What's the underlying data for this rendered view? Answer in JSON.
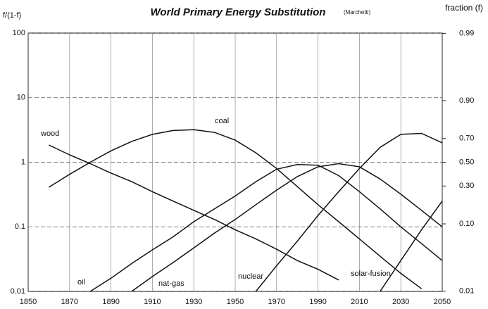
{
  "chart_data": {
    "type": "line",
    "title": "World Primary Energy Substitution",
    "subtitle": "(Marchetti)",
    "y_label": "f/(1-f)",
    "y2_label": "fraction (f)",
    "log_y": true,
    "grid": true,
    "color": "#111111",
    "xlim": [
      1850,
      2050
    ],
    "xticks": [
      1850,
      1870,
      1890,
      1910,
      1930,
      1950,
      1970,
      1990,
      2010,
      2030,
      2050
    ],
    "ylim": [
      0.01,
      100
    ],
    "yticks": [
      0.01,
      0.1,
      1,
      10,
      100
    ],
    "y2ticks": [
      0.99,
      {
        "value": 0.9,
        "label": "0.90"
      },
      {
        "value": 0.7,
        "label": "0.70"
      },
      {
        "value": 0.5,
        "label": "0.50"
      },
      {
        "value": 0.3,
        "label": "0.30"
      },
      {
        "value": 0.1,
        "label": "0.10"
      },
      0.01
    ],
    "x": [
      1850,
      1860,
      1870,
      1880,
      1890,
      1900,
      1910,
      1920,
      1930,
      1940,
      1950,
      1960,
      1970,
      1980,
      1990,
      2000,
      2010,
      2020,
      2030,
      2040,
      2050
    ],
    "series": [
      {
        "name": "wood",
        "color": "#111111",
        "values": [
          null,
          1.85,
          1.3,
          0.95,
          0.68,
          0.5,
          0.35,
          0.25,
          0.18,
          0.13,
          0.09,
          0.065,
          0.045,
          0.03,
          0.022,
          0.015,
          null,
          null,
          null,
          null,
          null
        ]
      },
      {
        "name": "coal",
        "color": "#111111",
        "values": [
          null,
          0.41,
          0.65,
          1.0,
          1.5,
          2.1,
          2.7,
          3.1,
          3.2,
          2.9,
          2.2,
          1.4,
          0.8,
          0.42,
          0.22,
          0.12,
          0.065,
          0.035,
          0.019,
          0.011,
          null
        ]
      },
      {
        "name": "oil",
        "color": "#111111",
        "values": [
          null,
          null,
          null,
          0.01,
          0.016,
          0.027,
          0.044,
          0.07,
          0.12,
          0.19,
          0.3,
          0.5,
          0.78,
          0.92,
          0.9,
          0.62,
          0.35,
          0.19,
          0.1,
          0.055,
          0.03
        ]
      },
      {
        "name": "nat-gas",
        "color": "#111111",
        "values": [
          null,
          null,
          null,
          null,
          null,
          0.01,
          0.017,
          0.028,
          0.047,
          0.08,
          0.13,
          0.22,
          0.37,
          0.6,
          0.85,
          0.95,
          0.85,
          0.55,
          0.32,
          0.18,
          0.1
        ]
      },
      {
        "name": "nuclear",
        "color": "#111111",
        "values": [
          null,
          null,
          null,
          null,
          null,
          null,
          null,
          null,
          null,
          null,
          null,
          0.01,
          0.025,
          0.06,
          0.15,
          0.35,
          0.8,
          1.7,
          2.7,
          2.8,
          2.0
        ]
      },
      {
        "name": "solar-fusion",
        "color": "#111111",
        "values": [
          null,
          null,
          null,
          null,
          null,
          null,
          null,
          null,
          null,
          null,
          null,
          null,
          null,
          null,
          null,
          null,
          null,
          0.01,
          0.03,
          0.09,
          0.25
        ]
      }
    ]
  }
}
